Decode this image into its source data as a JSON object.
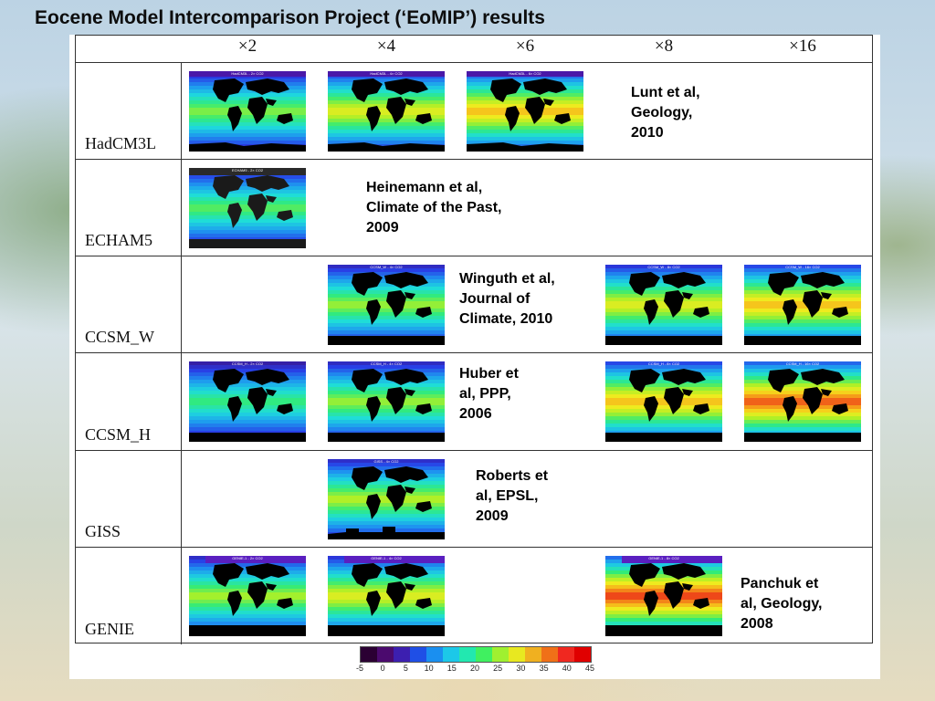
{
  "title": "Eocene Model Intercomparison Project (‘EoMIP’) results",
  "columns": [
    "×2",
    "×4",
    "×6",
    "×8",
    "×16"
  ],
  "rows": [
    {
      "model": "HadCM3L",
      "maps": [
        {
          "col": 0,
          "caption": "HadCM3L - 2× CO2",
          "warmth": 0.35,
          "style": "had"
        },
        {
          "col": 1,
          "caption": "HadCM3L - 4× CO2",
          "warmth": 0.5,
          "style": "had"
        },
        {
          "col": 2,
          "caption": "HadCM3L - 6× CO2",
          "warmth": 0.62,
          "style": "had"
        }
      ],
      "reference": [
        "Lunt et al,",
        "Geology,",
        "2010"
      ]
    },
    {
      "model": "ECHAM5",
      "maps": [
        {
          "col": 0,
          "caption": "ECHAM5 - 2× CO2",
          "warmth": 0.3,
          "style": "echam"
        }
      ],
      "reference": [
        "Heinemann et al,",
        "Climate of the Past,",
        "2009"
      ]
    },
    {
      "model": "CCSM_W",
      "maps": [
        {
          "col": 1,
          "caption": "CCSM_W - 4× CO2",
          "warmth": 0.38,
          "style": "ccsm"
        },
        {
          "col": 3,
          "caption": "CCSM_W - 8× CO2",
          "warmth": 0.5,
          "style": "ccsm"
        },
        {
          "col": 4,
          "caption": "CCSM_W - 16× CO2",
          "warmth": 0.62,
          "style": "ccsm"
        }
      ],
      "reference": [
        "Winguth et al,",
        "Journal of",
        "Climate, 2010"
      ]
    },
    {
      "model": "CCSM_H",
      "maps": [
        {
          "col": 0,
          "caption": "CCSM_H - 2× CO2",
          "warmth": 0.25,
          "style": "ccsm"
        },
        {
          "col": 1,
          "caption": "CCSM_H - 4× CO2",
          "warmth": 0.38,
          "style": "ccsm"
        },
        {
          "col": 3,
          "caption": "CCSM_H - 8× CO2",
          "warmth": 0.62,
          "style": "ccsm"
        },
        {
          "col": 4,
          "caption": "CCSM_H - 16× CO2",
          "warmth": 0.78,
          "style": "ccsm"
        }
      ],
      "reference": [
        "Huber et",
        "al, PPP,",
        "2006"
      ]
    },
    {
      "model": "GISS",
      "maps": [
        {
          "col": 1,
          "caption": "GISS - 4× CO2",
          "warmth": 0.42,
          "style": "giss"
        }
      ],
      "reference": [
        "Roberts et",
        "al, EPSL,",
        "2009"
      ]
    },
    {
      "model": "GENIE",
      "maps": [
        {
          "col": 0,
          "caption": "GENIE-1 - 2× CO2",
          "warmth": 0.4,
          "style": "genie"
        },
        {
          "col": 1,
          "caption": "GENIE-1 - 4× CO2",
          "warmth": 0.5,
          "style": "genie"
        },
        {
          "col": 3,
          "caption": "GENIE-1 - 8× CO2",
          "warmth": 0.82,
          "style": "genie"
        }
      ],
      "reference": [
        "Panchuk et",
        "al, Geology,",
        "2008"
      ]
    }
  ],
  "colorbar": {
    "colors": [
      "#2b0033",
      "#4b0a6e",
      "#3c1fb0",
      "#1f4fe6",
      "#1a8ff0",
      "#1cc8e8",
      "#22e8b0",
      "#40f060",
      "#a0f030",
      "#e8e820",
      "#f0b020",
      "#f07018",
      "#f02820",
      "#e00000"
    ],
    "ticks": [
      "-5",
      "0",
      "5",
      "10",
      "15",
      "20",
      "25",
      "30",
      "35",
      "40",
      "45"
    ]
  }
}
